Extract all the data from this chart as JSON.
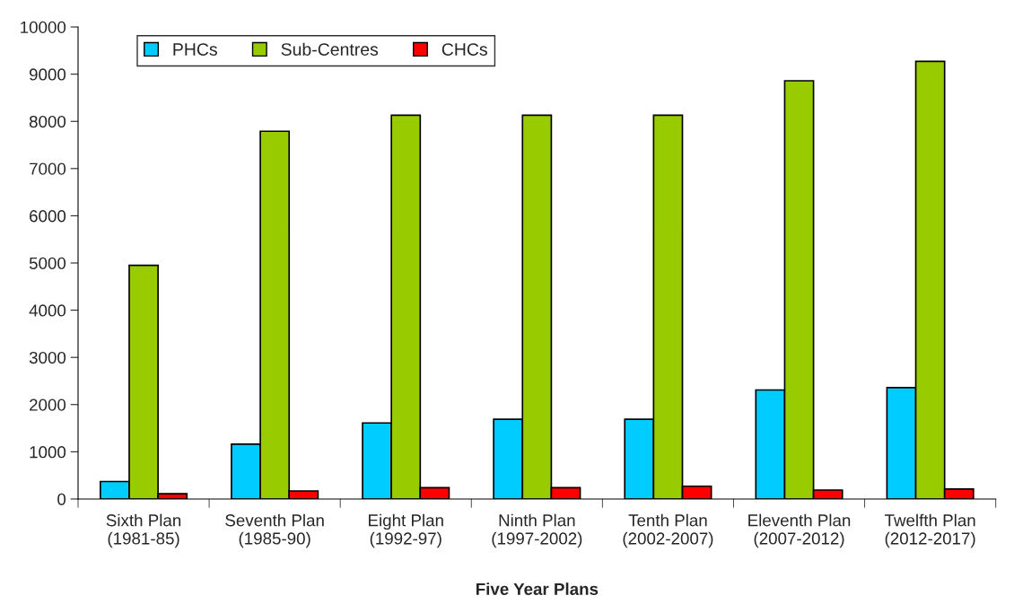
{
  "chart_data": {
    "type": "bar",
    "xlabel": "Five Year Plans",
    "categories": [
      "Sixth Plan\n(1981-85)",
      "Seventh Plan\n(1985-90)",
      "Eight Plan\n(1992-97)",
      "Ninth Plan\n(1997-2002)",
      "Tenth Plan\n(2002-2007)",
      "Eleventh Plan\n(2007-2012)",
      "Twelfth Plan\n(2012-2017)"
    ],
    "series": [
      {
        "name": "PHCs",
        "color": "#00ccff",
        "values": [
          370,
          1160,
          1610,
          1690,
          1690,
          2310,
          2360
        ]
      },
      {
        "name": "Sub-Centres",
        "color": "#99cc00",
        "values": [
          4950,
          7790,
          8130,
          8130,
          8130,
          8860,
          9270
        ]
      },
      {
        "name": "CHCs",
        "color": "#ff0000",
        "values": [
          110,
          170,
          240,
          240,
          270,
          190,
          210
        ]
      }
    ],
    "ylim": [
      0,
      10000
    ],
    "yticks": [
      0,
      1000,
      2000,
      3000,
      4000,
      5000,
      6000,
      7000,
      8000,
      9000,
      10000
    ],
    "grid": false,
    "legend": "top left"
  }
}
